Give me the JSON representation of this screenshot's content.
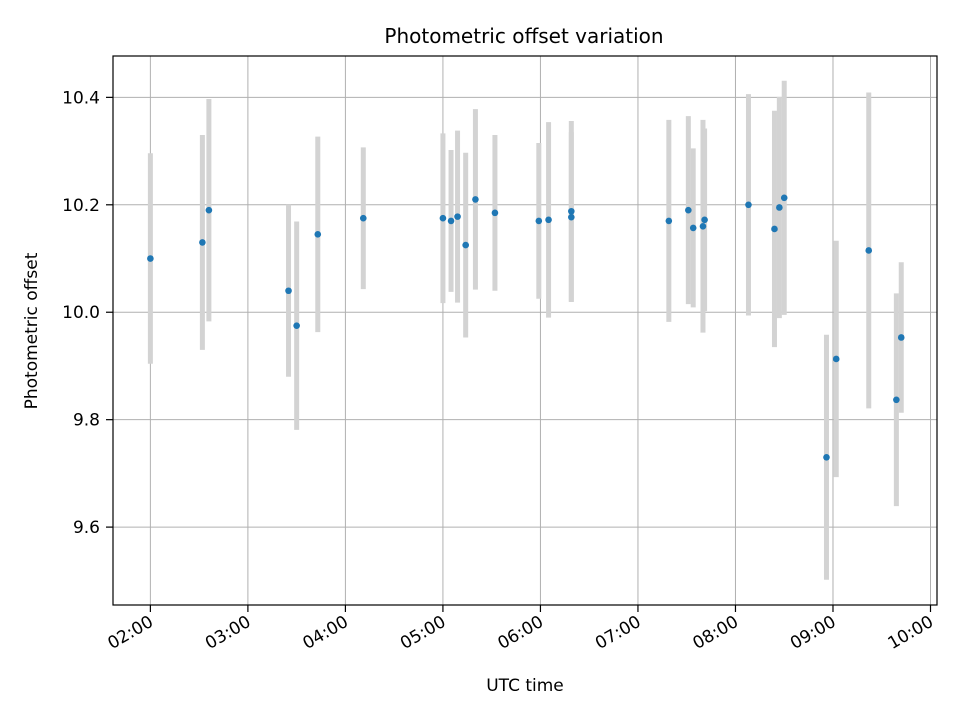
{
  "chart_data": {
    "type": "scatter",
    "title": "Photometric offset variation",
    "xlabel": "UTC time",
    "ylabel": "Photometric offset",
    "xlim": [
      "01:37",
      "10:04"
    ],
    "ylim": [
      9.455,
      10.477
    ],
    "x_ticks": [
      "02:00",
      "03:00",
      "04:00",
      "05:00",
      "06:00",
      "07:00",
      "08:00",
      "09:00",
      "10:00"
    ],
    "y_ticks": [
      "9.6",
      "9.8",
      "10.0",
      "10.2",
      "10.4"
    ],
    "grid": true,
    "colors": {
      "points": "#1f77b4",
      "errorbars": "#d3d3d3",
      "grid": "#b0b0b0"
    },
    "series": [
      {
        "points": [
          {
            "x": "02:00",
            "y": 10.1,
            "yerr": 0.196
          },
          {
            "x": "02:32",
            "y": 10.13,
            "yerr": 0.2
          },
          {
            "x": "02:36",
            "y": 10.19,
            "yerr": 0.207
          },
          {
            "x": "03:25",
            "y": 10.04,
            "yerr": 0.16
          },
          {
            "x": "03:30",
            "y": 9.975,
            "yerr": 0.194
          },
          {
            "x": "03:43",
            "y": 10.145,
            "yerr": 0.182
          },
          {
            "x": "04:11",
            "y": 10.175,
            "yerr": 0.132
          },
          {
            "x": "05:00",
            "y": 10.175,
            "yerr": 0.158
          },
          {
            "x": "05:05",
            "y": 10.17,
            "yerr": 0.132
          },
          {
            "x": "05:09",
            "y": 10.178,
            "yerr": 0.16
          },
          {
            "x": "05:14",
            "y": 10.125,
            "yerr": 0.172
          },
          {
            "x": "05:20",
            "y": 10.21,
            "yerr": 0.168
          },
          {
            "x": "05:32",
            "y": 10.185,
            "yerr": 0.145
          },
          {
            "x": "05:59",
            "y": 10.17,
            "yerr": 0.145
          },
          {
            "x": "06:05",
            "y": 10.172,
            "yerr": 0.182
          },
          {
            "x": "06:19",
            "y": 10.188,
            "yerr": 0.168
          },
          {
            "x": "06:19",
            "y": 10.177,
            "yerr": 0.158
          },
          {
            "x": "07:19",
            "y": 10.17,
            "yerr": 0.188
          },
          {
            "x": "07:31",
            "y": 10.19,
            "yerr": 0.175
          },
          {
            "x": "07:34",
            "y": 10.157,
            "yerr": 0.148
          },
          {
            "x": "07:40",
            "y": 10.16,
            "yerr": 0.198
          },
          {
            "x": "07:41",
            "y": 10.172,
            "yerr": 0.17
          },
          {
            "x": "08:08",
            "y": 10.2,
            "yerr": 0.206
          },
          {
            "x": "08:24",
            "y": 10.155,
            "yerr": 0.22
          },
          {
            "x": "08:27",
            "y": 10.195,
            "yerr": 0.206
          },
          {
            "x": "08:30",
            "y": 10.213,
            "yerr": 0.218
          },
          {
            "x": "08:56",
            "y": 9.73,
            "yerr": 0.228
          },
          {
            "x": "09:02",
            "y": 9.913,
            "yerr": 0.22
          },
          {
            "x": "09:22",
            "y": 10.115,
            "yerr": 0.294
          },
          {
            "x": "09:39",
            "y": 9.837,
            "yerr": 0.198
          },
          {
            "x": "09:42",
            "y": 9.953,
            "yerr": 0.14
          }
        ]
      }
    ]
  }
}
